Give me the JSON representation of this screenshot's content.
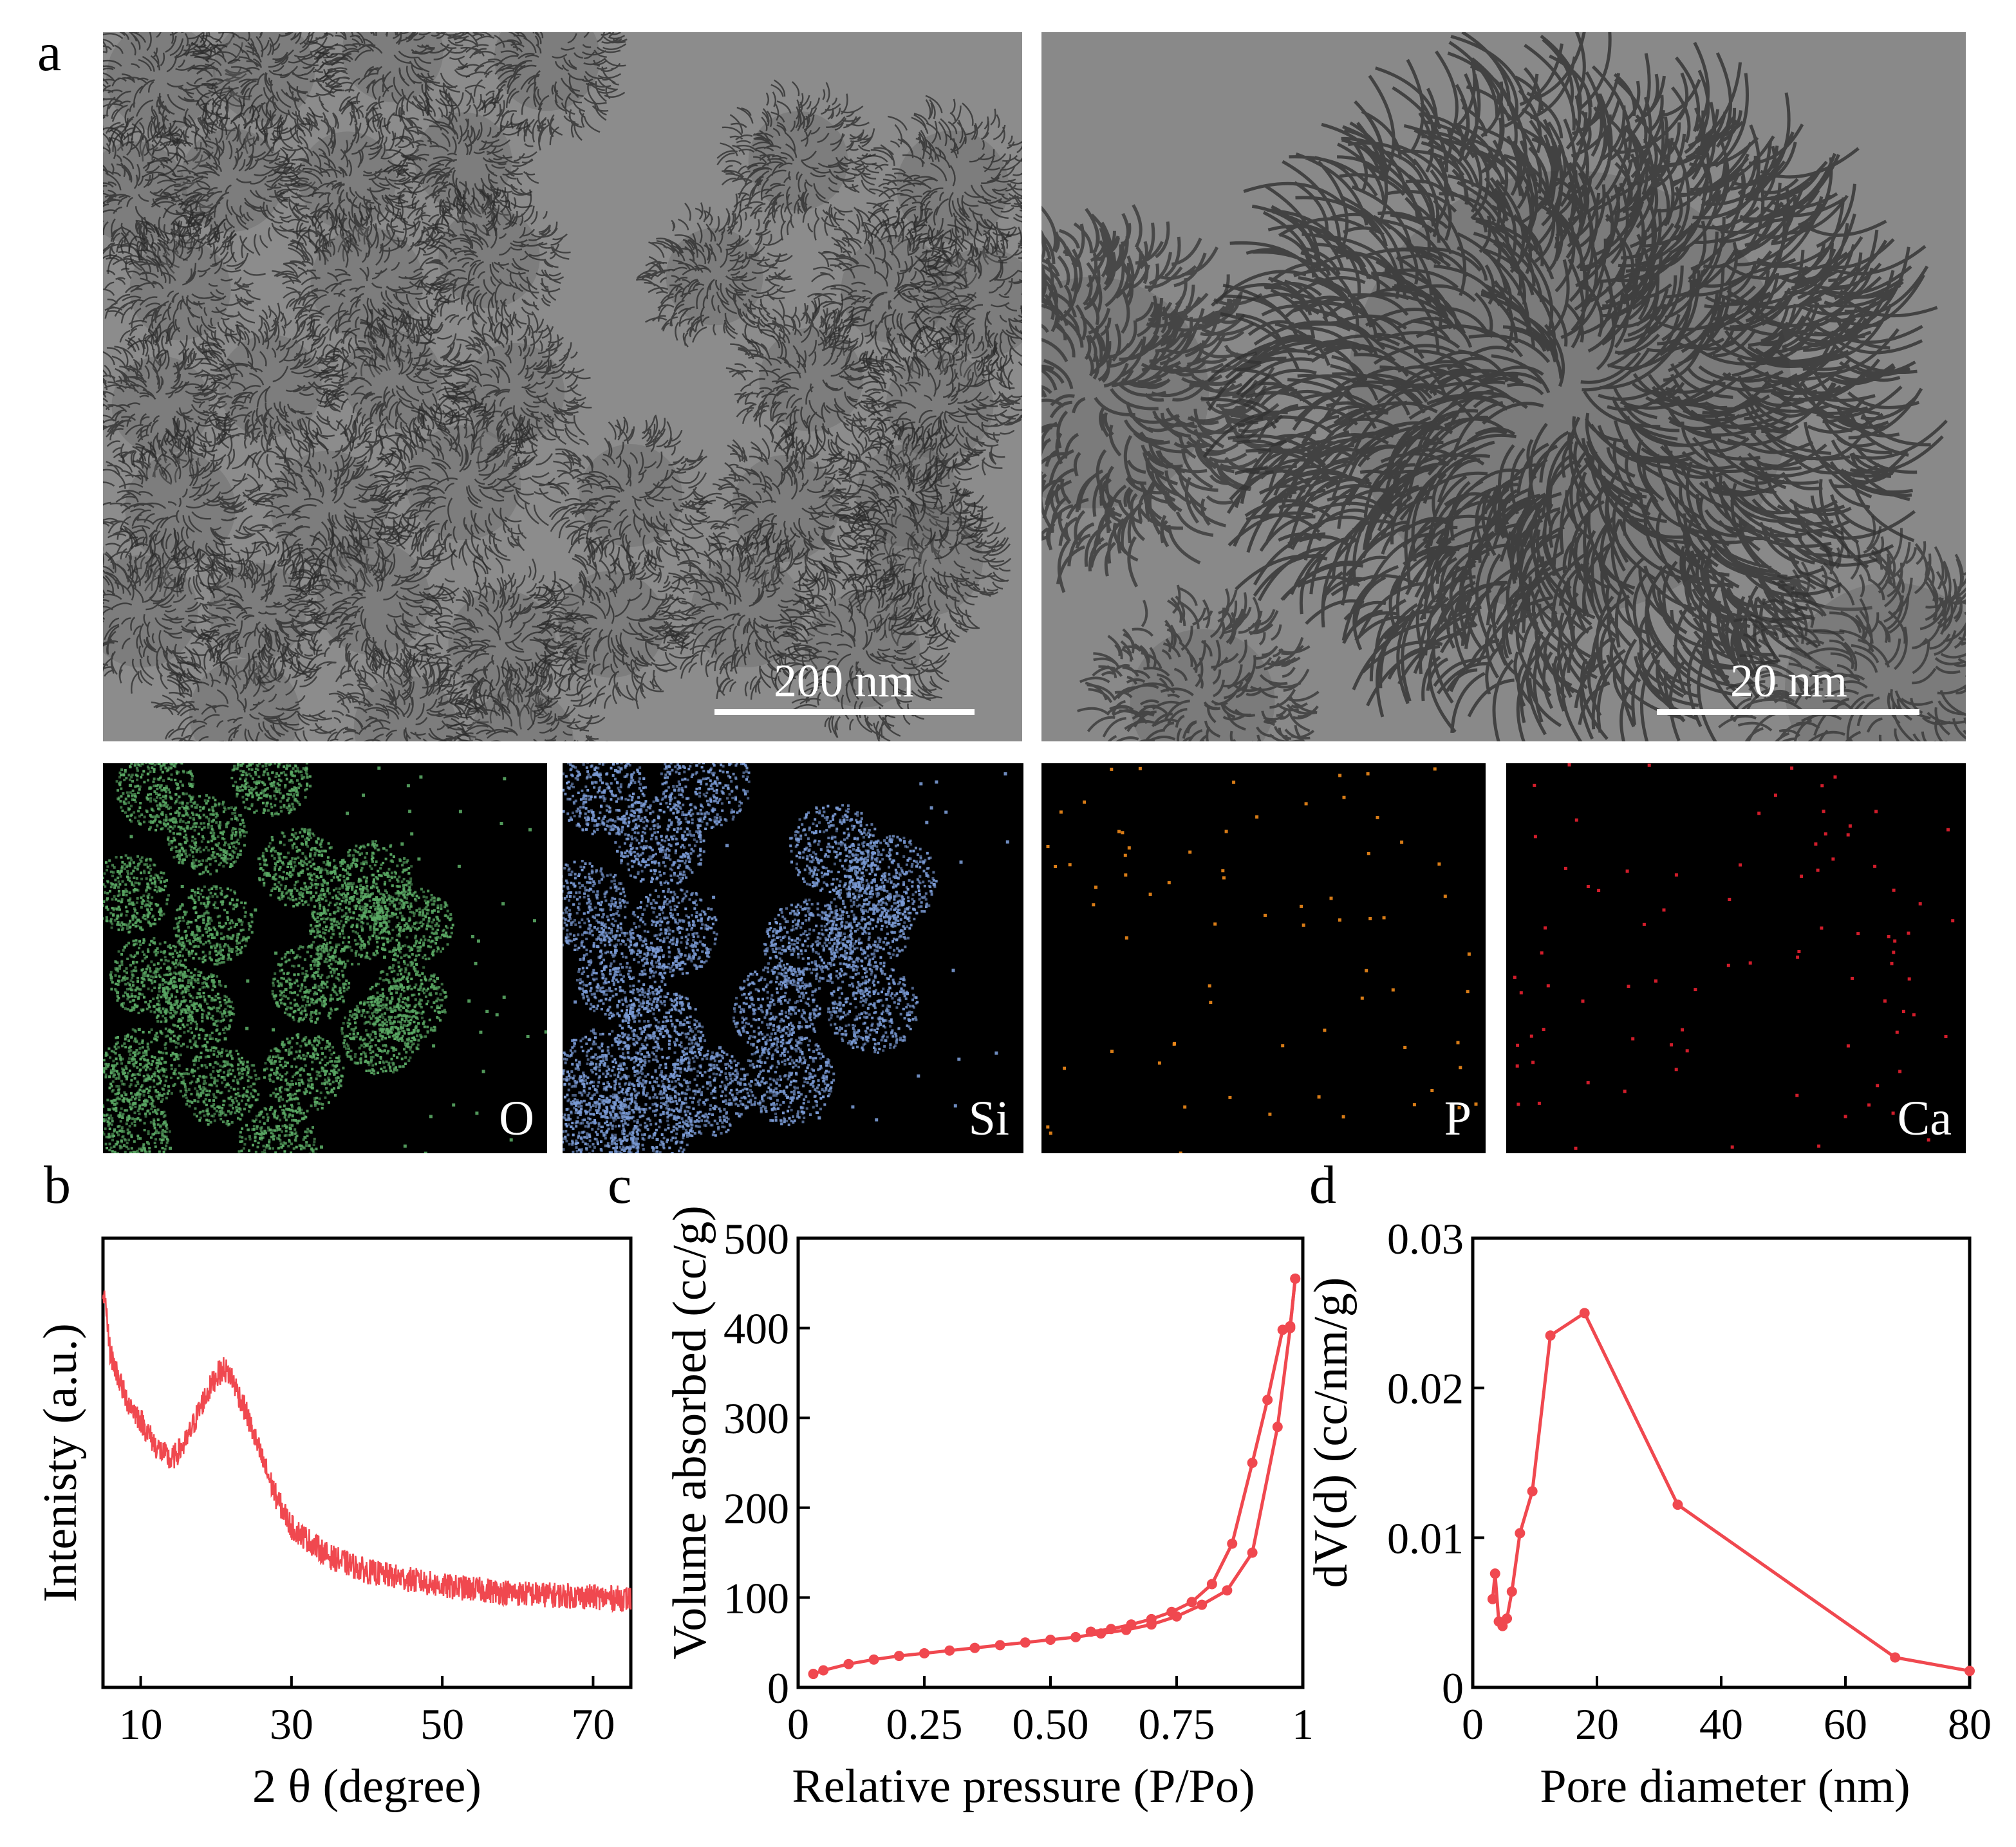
{
  "panels": {
    "a": "a",
    "b": "b",
    "c": "c",
    "d": "d"
  },
  "tem": {
    "left_scale": "200 nm",
    "right_scale": "20 nm"
  },
  "eds": {
    "maps": [
      {
        "label": "O",
        "color": "#4e9a57"
      },
      {
        "label": "Si",
        "color": "#6f8fc4"
      },
      {
        "label": "P",
        "color": "#e07b1c"
      },
      {
        "label": "Ca",
        "color": "#e0202a"
      }
    ]
  },
  "chart_data": [
    {
      "type": "line",
      "panel": "b",
      "xlabel": "2 θ (degree)",
      "ylabel": "Intenisty (a.u.)",
      "xlim": [
        5,
        75
      ],
      "xticks": [
        10,
        30,
        50,
        70
      ],
      "yticks": [],
      "series": [
        {
          "color": "#f0484f",
          "x": [
            5,
            6,
            8,
            10,
            12,
            14,
            16,
            18,
            20,
            21,
            22,
            24,
            26,
            28,
            30,
            35,
            40,
            45,
            50,
            55,
            60,
            65,
            70,
            75
          ],
          "y": [
            1.0,
            0.82,
            0.7,
            0.64,
            0.57,
            0.53,
            0.58,
            0.68,
            0.76,
            0.78,
            0.76,
            0.66,
            0.54,
            0.43,
            0.35,
            0.27,
            0.23,
            0.21,
            0.19,
            0.18,
            0.17,
            0.165,
            0.16,
            0.155
          ]
        }
      ]
    },
    {
      "type": "line",
      "panel": "c",
      "xlabel": "Relative pressure   (P/Po)",
      "ylabel": "Volume absorbed (cc/g)",
      "xlim": [
        0,
        1
      ],
      "ylim": [
        0,
        500
      ],
      "xticks": [
        "0",
        "0.25",
        "0.50",
        "0.75",
        "1"
      ],
      "yticks": [
        "0",
        "100",
        "200",
        "300",
        "400",
        "500"
      ],
      "series": [
        {
          "color": "#f0484f",
          "x": [
            0.03,
            0.05,
            0.1,
            0.15,
            0.2,
            0.25,
            0.3,
            0.35,
            0.4,
            0.45,
            0.5,
            0.55,
            0.6,
            0.65,
            0.7,
            0.75,
            0.8,
            0.85,
            0.9,
            0.95,
            0.975,
            0.985
          ],
          "y": [
            15,
            19,
            26,
            31,
            35,
            38,
            41,
            44,
            47,
            50,
            53,
            56,
            60,
            64,
            70,
            79,
            92,
            108,
            150,
            290,
            400,
            455
          ]
        },
        {
          "color": "#f0484f",
          "x": [
            0.985,
            0.975,
            0.96,
            0.93,
            0.9,
            0.86,
            0.82,
            0.78,
            0.74,
            0.7,
            0.66,
            0.62,
            0.58
          ],
          "y": [
            455,
            402,
            398,
            320,
            250,
            160,
            115,
            95,
            84,
            76,
            70,
            65,
            62
          ]
        }
      ]
    },
    {
      "type": "line",
      "panel": "d",
      "xlabel": "Pore diameter (nm)",
      "ylabel": "dV(d) (cc/nm/g)",
      "xlim": [
        0,
        80
      ],
      "ylim": [
        0,
        0.03
      ],
      "xticks": [
        "0",
        "20",
        "40",
        "60",
        "80"
      ],
      "yticks": [
        "0",
        "0.01",
        "0.02",
        "0.03"
      ],
      "series": [
        {
          "color": "#f0484f",
          "x": [
            3.2,
            3.6,
            4.2,
            4.8,
            5.5,
            6.3,
            7.6,
            9.6,
            12.5,
            18.0,
            33.0,
            68.0,
            80.0
          ],
          "y": [
            0.0059,
            0.0076,
            0.0044,
            0.0041,
            0.0046,
            0.0064,
            0.0103,
            0.0131,
            0.0235,
            0.025,
            0.0122,
            0.002,
            0.0011
          ]
        }
      ]
    }
  ]
}
